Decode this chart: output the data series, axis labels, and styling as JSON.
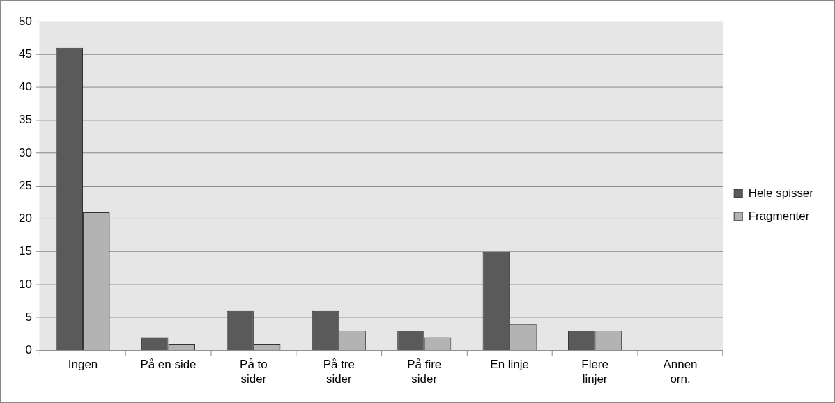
{
  "chart_data": {
    "type": "bar",
    "categories": [
      "Ingen",
      "På en side",
      "På to\nsider",
      "På tre\nsider",
      "På fire\nsider",
      "En linje",
      "Flere\nlinjer",
      "Annen\norn."
    ],
    "series": [
      {
        "name": "Hele spisser",
        "color": "#5a5a5a",
        "values": [
          46,
          2,
          6,
          6,
          3,
          15,
          3,
          0
        ]
      },
      {
        "name": "Fragmenter",
        "color": "#b3b3b3",
        "values": [
          21,
          1,
          1,
          3,
          2,
          4,
          3,
          0
        ]
      }
    ],
    "ylim": [
      0,
      50
    ],
    "yticks": [
      0,
      5,
      10,
      15,
      20,
      25,
      30,
      35,
      40,
      45,
      50
    ],
    "grid": "y",
    "legend": "right"
  }
}
